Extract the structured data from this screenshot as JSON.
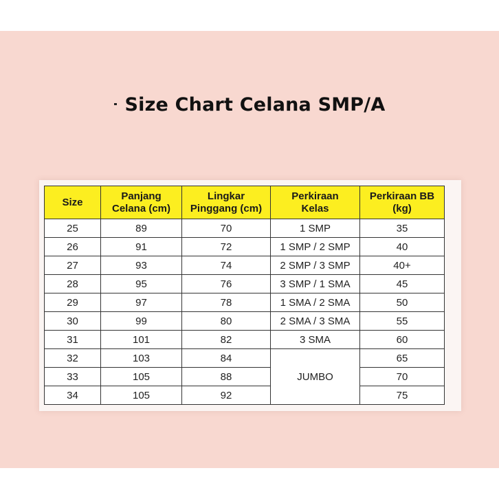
{
  "title": "Size Chart Celana SMP/A",
  "table": {
    "headers": [
      {
        "line1": "Size",
        "line2": ""
      },
      {
        "line1": "Panjang",
        "line2": "Celana (cm)"
      },
      {
        "line1": "Lingkar",
        "line2": "Pinggang (cm)"
      },
      {
        "line1": "Perkiraan",
        "line2": "Kelas"
      },
      {
        "line1": "Perkiraan BB",
        "line2": "(kg)"
      }
    ],
    "rows": [
      {
        "size": "25",
        "panjang": "89",
        "lingkar": "70",
        "kelas": "1 SMP",
        "bb": "35"
      },
      {
        "size": "26",
        "panjang": "91",
        "lingkar": "72",
        "kelas": "1 SMP / 2 SMP",
        "bb": "40"
      },
      {
        "size": "27",
        "panjang": "93",
        "lingkar": "74",
        "kelas": "2 SMP / 3 SMP",
        "bb": "40+"
      },
      {
        "size": "28",
        "panjang": "95",
        "lingkar": "76",
        "kelas": "3 SMP / 1 SMA",
        "bb": "45"
      },
      {
        "size": "29",
        "panjang": "97",
        "lingkar": "78",
        "kelas": "1 SMA / 2 SMA",
        "bb": "50"
      },
      {
        "size": "30",
        "panjang": "99",
        "lingkar": "80",
        "kelas": "2 SMA / 3 SMA",
        "bb": "55"
      },
      {
        "size": "31",
        "panjang": "101",
        "lingkar": "82",
        "kelas": "3 SMA",
        "bb": "60"
      },
      {
        "size": "32",
        "panjang": "103",
        "lingkar": "84",
        "kelas": "",
        "bb": "65"
      },
      {
        "size": "33",
        "panjang": "105",
        "lingkar": "88",
        "kelas": "",
        "bb": "70"
      },
      {
        "size": "34",
        "panjang": "105",
        "lingkar": "92",
        "kelas": "",
        "bb": "75"
      }
    ],
    "merged_kelas": "JUMBO"
  },
  "colors": {
    "background": "#f8d8d0",
    "header": "#fcee20",
    "border": "#333333"
  }
}
